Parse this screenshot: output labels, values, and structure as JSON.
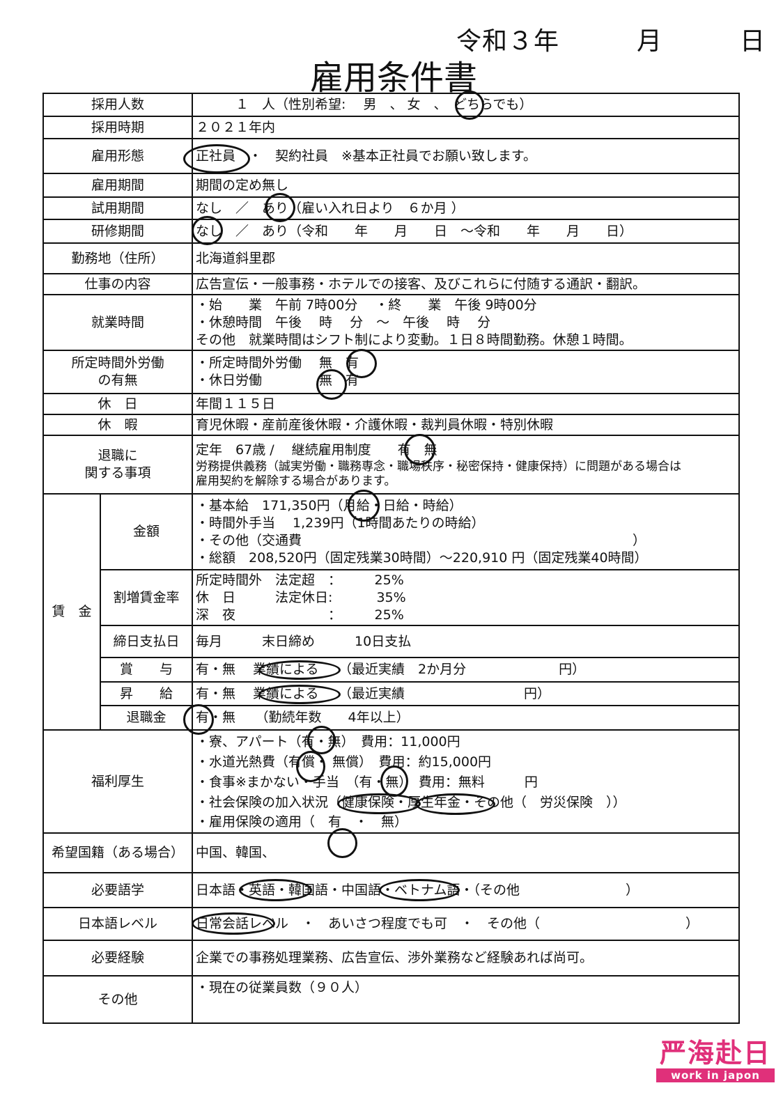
{
  "date": "令和３年　　　月　　　日",
  "title": "雇用条件書",
  "rows": {
    "r1": {
      "label": "採用人数",
      "lines": [
        "　　　１　人（性別希望:　 男　、 女　、　どちらでも）"
      ]
    },
    "r2": {
      "label": "採用時期",
      "lines": [
        "２０２１年内"
      ]
    },
    "r3": {
      "label": "雇用形態",
      "lines": [
        "正社員　・　契約社員　※基本正社員でお願い致します。"
      ]
    },
    "r4": {
      "label": "雇用期間",
      "lines": [
        "期間の定め無し"
      ]
    },
    "r5": {
      "label": "試用期間",
      "lines": [
        "なし　／　あり（雇い入れ日より　６か月 ）"
      ]
    },
    "r6": {
      "label": "研修期間",
      "lines": [
        "なし　／　あり（令和　　年　　月　　日　～令和　　年　　月　　日）"
      ]
    },
    "r7": {
      "label": "勤務地（住所）",
      "lines": [
        "北海道斜里郡"
      ]
    },
    "r8": {
      "label": "仕事の内容",
      "lines": [
        "広告宣伝・一般事務・ホテルでの接客、及びこれらに付随する通訳・翻訳。"
      ]
    },
    "r9": {
      "label": "就業時間",
      "lines": [
        "・始　　業　午前 7時00分　 ・終　　業　午後 9時00分",
        "・休憩時間　午後　 時　 分　～　午後　 時　 分",
        "その他　就業時間はシフト制により変動。１日８時間勤務。休憩１時間。"
      ]
    },
    "r10": {
      "label": [
        "所定時間外労働",
        "の有無"
      ],
      "lines": [
        "・所定時間外労働　 無　有",
        "・休日労働　　　　 無　有"
      ]
    },
    "r11": {
      "label": "休　日",
      "lines": [
        "年間１１５日"
      ]
    },
    "r12": {
      "label": "休　暇",
      "lines": [
        "育児休暇・産前産後休暇・介護休暇・裁判員休暇・特別休暇"
      ]
    },
    "r13": {
      "label": [
        "退職に",
        "関する事項"
      ],
      "lines": [
        "定年　67歳 /　 継続雇用制度　　有　無",
        "労務提供義務（誠実労働・職務専念・職場秩序・秘密保持・健康保持）に問題がある場合は",
        "雇用契約を解除する場合があります。"
      ]
    },
    "wage": {
      "label": "賃　金",
      "amount": {
        "label": "金額",
        "lines": [
          "・基本給　171,350円（月給・日給・時給）",
          "・時間外手当　 1,239円（1時間あたりの時給）",
          "・その他（交通費　　　　　　　　　　　　　　　　　　　　　　　　　）",
          "・総額　208,520円（固定残業30時間）～220,910 円（固定残業40時間）"
        ]
      },
      "premium": {
        "label": "割増賃金率",
        "lines": [
          "所定時間外　法定超　：　　　25%",
          "休　日　　　法定休日:　　　 35%",
          "深　夜　　　　　　　：　　　25%"
        ]
      },
      "payday": {
        "label": "締日支払日",
        "lines": [
          "毎月　　　末日締め　　　10日支払"
        ]
      },
      "bonus": {
        "label": "賞　　与",
        "lines": [
          "有・無　 業績による　　（最近実績　2か月分　　　　　　　円）"
        ]
      },
      "raise": {
        "label": "昇　　給",
        "lines": [
          "有・無　 業績による　　（最近実績　　　　　　　　　円）"
        ]
      },
      "retire": {
        "label": "退職金",
        "lines": [
          "有・無　　（勤続年数　　4年以上）"
        ]
      }
    },
    "r14": {
      "label": "福利厚生",
      "lines": [
        "・寮、アパート（有・無）　費用：11,000円",
        "・水道光熱費（有償・ 無償）　費用：約15,000円",
        "・食事※まかない・手当　（有・無）　費用：無料　　　円",
        "・社会保険の加入状況（健康保険・厚生年金・その他（　労災保険　））",
        "・雇用保険の適用（　有　・　無）"
      ]
    },
    "r15": {
      "label": "希望国籍（ある場合）",
      "lines": [
        "中国、韓国、"
      ]
    },
    "r16": {
      "label": "必要語学",
      "lines": [
        "日本語・英語・韓国語・中国語・ベトナム語・（その他　　　　　　　　）"
      ]
    },
    "r17": {
      "label": "日本語レベル",
      "lines": [
        "日常会話レベル　・　あいさつ程度でも可　・　その他（　　　　　　　　　　　）"
      ]
    },
    "r18": {
      "label": "必要経験",
      "lines": [
        "企業での事務処理業務、広告宣伝、渉外業務など経験あれば尚可。"
      ]
    },
    "r19": {
      "label": "その他",
      "lines": [
        "・現在の従業員数（９０人）",
        ""
      ]
    }
  },
  "watermark": {
    "text": "严海赴日",
    "sub": "work in japon",
    "color": "#e0307a"
  }
}
